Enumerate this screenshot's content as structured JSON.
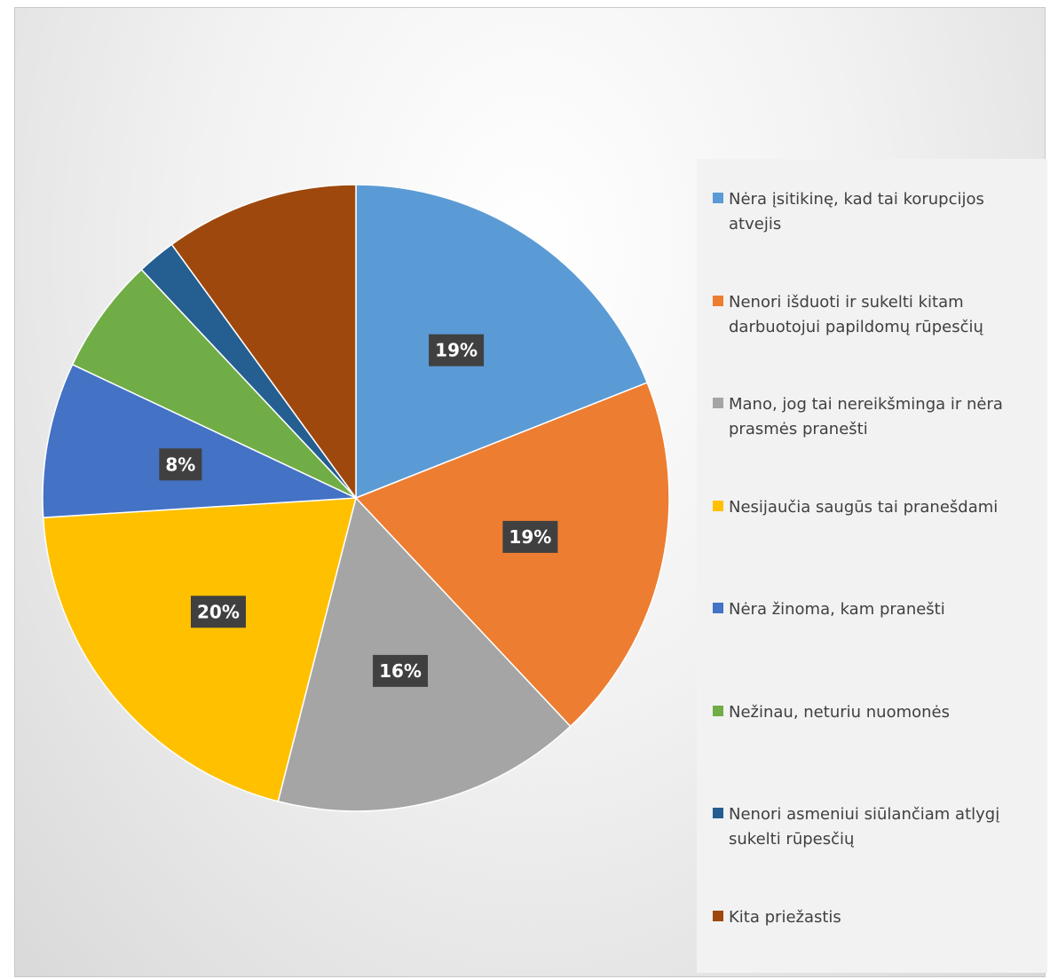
{
  "chart_data": {
    "type": "pie",
    "slices": [
      {
        "label": "Nėra įsitikinę, kad tai korupcijos atvejis",
        "value": 19,
        "data_label": "19%",
        "color": "#5B9BD5"
      },
      {
        "label": "Nenori išduoti ir sukelti kitam darbuotojui papildomų rūpesčių",
        "value": 19,
        "data_label": "19%",
        "color": "#ED7D31"
      },
      {
        "label": "Mano, jog tai nereikšminga ir nėra prasmės pranešti",
        "value": 16,
        "data_label": "16%",
        "color": "#A5A5A5"
      },
      {
        "label": "Nesijaučia saugūs tai pranešdami",
        "value": 20,
        "data_label": "20%",
        "color": "#FFC000"
      },
      {
        "label": "Nėra žinoma, kam pranešti",
        "value": 8,
        "data_label": "8%",
        "color": "#4472C4"
      },
      {
        "label": "Nežinau, neturiu nuomonės",
        "value": 6,
        "data_label": "",
        "color": "#70AD47"
      },
      {
        "label": "Nenori asmeniui siūlančiam atlygį sukelti rūpesčių",
        "value": 2,
        "data_label": "",
        "color": "#255E91"
      },
      {
        "label": "Kita priežastis",
        "value": 10,
        "data_label": "",
        "color": "#9E480E"
      }
    ],
    "legend_position": "right"
  }
}
